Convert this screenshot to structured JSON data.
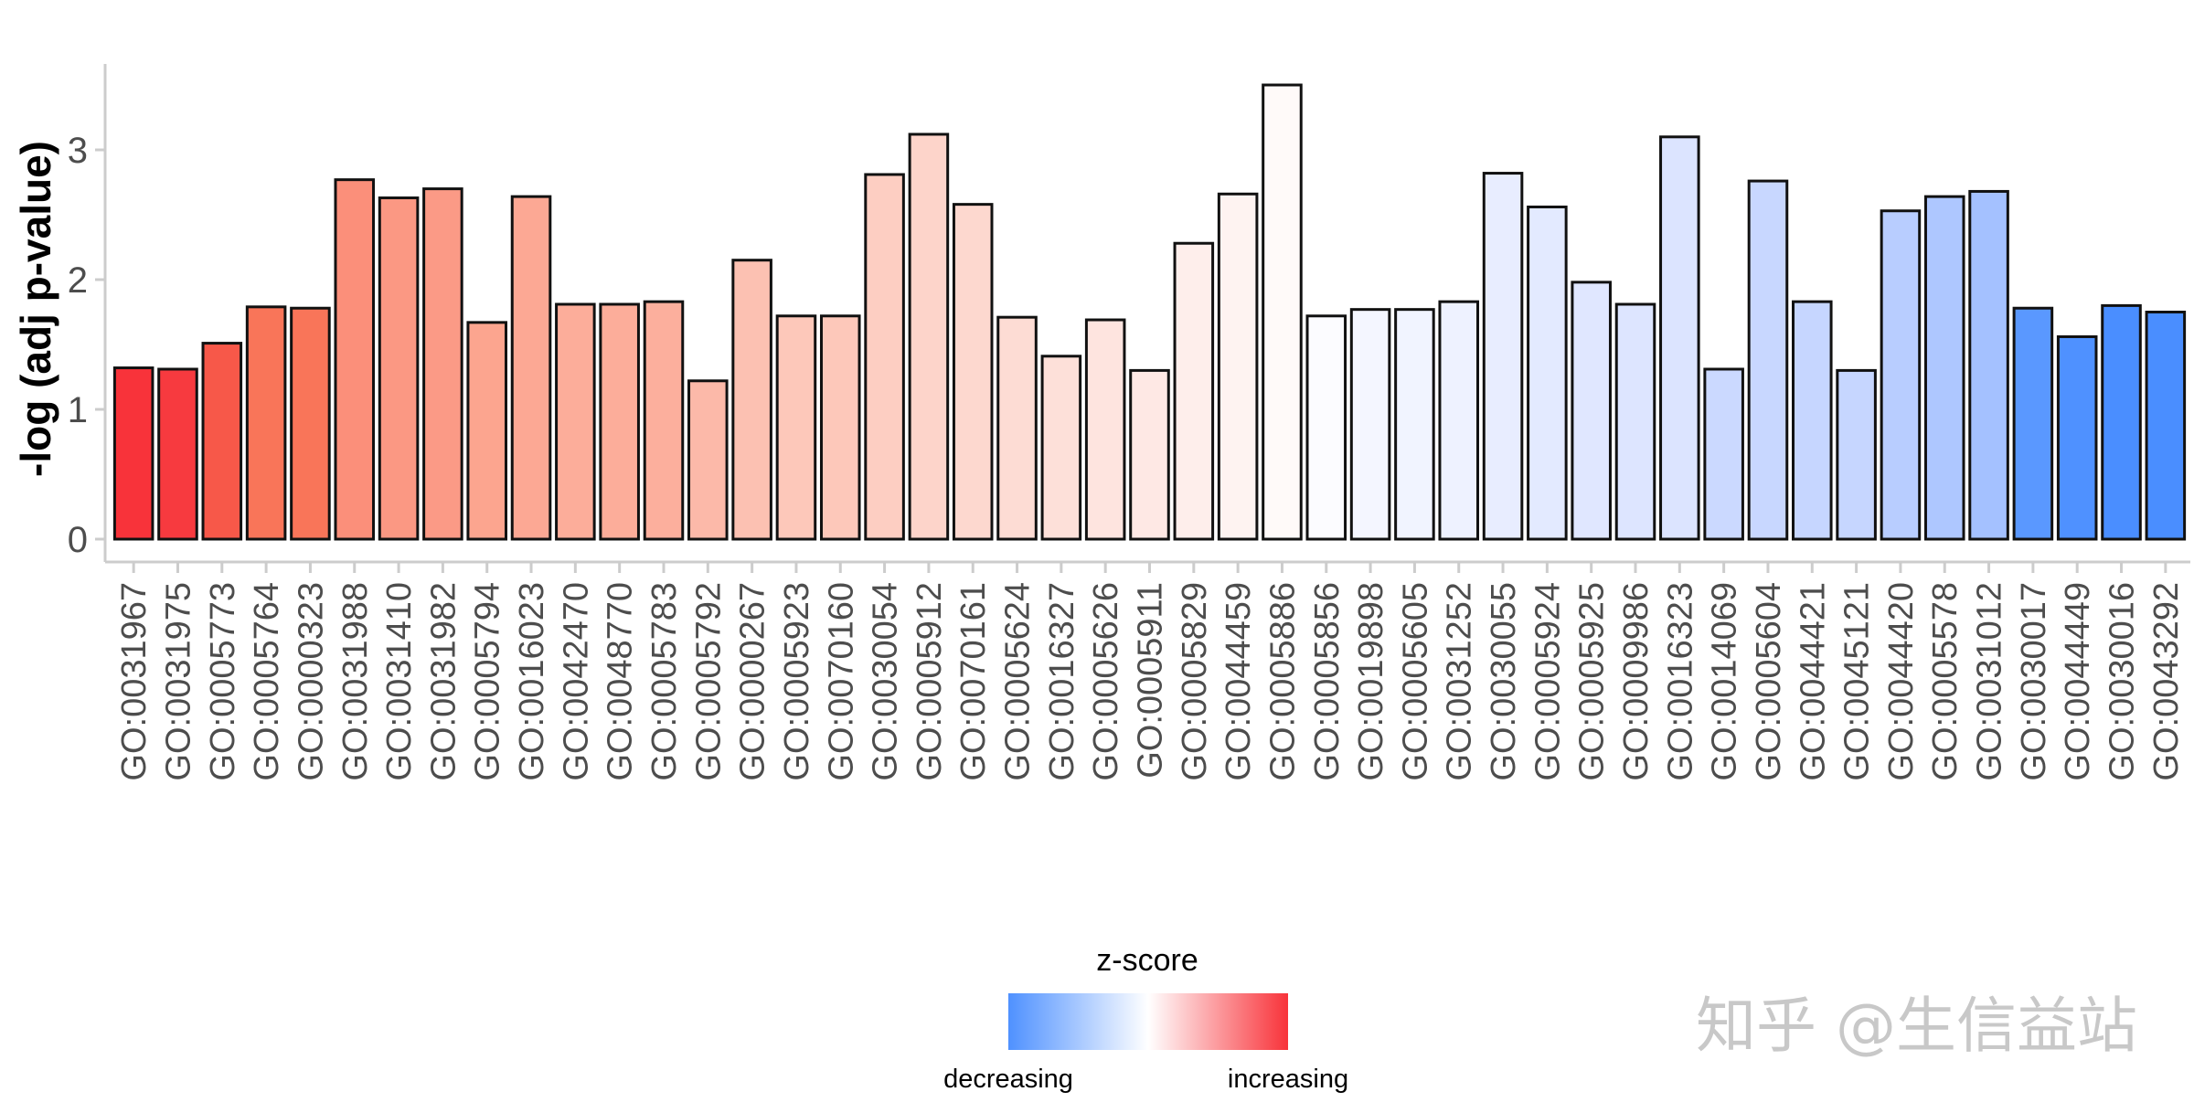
{
  "chart_data": {
    "type": "bar",
    "title": "",
    "xlabel": "",
    "ylabel": "-log (adj p-value)",
    "ylim": [
      0,
      3.6
    ],
    "yticks": [
      "0",
      "1",
      "2",
      "3"
    ],
    "categories": [
      "GO:0031967",
      "GO:0031975",
      "GO:0005773",
      "GO:0005764",
      "GO:0000323",
      "GO:0031988",
      "GO:0031410",
      "GO:0031982",
      "GO:0005794",
      "GO:0016023",
      "GO:0042470",
      "GO:0048770",
      "GO:0005783",
      "GO:0005792",
      "GO:0000267",
      "GO:0005923",
      "GO:0070160",
      "GO:0030054",
      "GO:0005912",
      "GO:0070161",
      "GO:0005624",
      "GO:0016327",
      "GO:0005626",
      "GO:0005911",
      "GO:0005829",
      "GO:0044459",
      "GO:0005886",
      "GO:0005856",
      "GO:0019898",
      "GO:0005605",
      "GO:0031252",
      "GO:0030055",
      "GO:0005924",
      "GO:0005925",
      "GO:0009986",
      "GO:0016323",
      "GO:0014069",
      "GO:0005604",
      "GO:0044421",
      "GO:0045121",
      "GO:0044420",
      "GO:0005578",
      "GO:0031012",
      "GO:0030017",
      "GO:0044449",
      "GO:0030016",
      "GO:0043292"
    ],
    "values": [
      1.32,
      1.31,
      1.51,
      1.79,
      1.78,
      2.77,
      2.63,
      2.7,
      1.67,
      2.64,
      1.81,
      1.81,
      1.83,
      1.22,
      2.15,
      1.72,
      1.72,
      2.81,
      3.12,
      2.58,
      1.71,
      1.41,
      1.69,
      1.3,
      2.28,
      2.66,
      3.5,
      1.72,
      1.77,
      1.77,
      1.83,
      2.82,
      2.56,
      1.98,
      1.81,
      3.1,
      1.31,
      2.76,
      1.83,
      1.3,
      2.53,
      2.64,
      2.68,
      1.78,
      1.56,
      1.8,
      1.75
    ],
    "colors": [
      "#f8333a",
      "#f73a3f",
      "#f75849",
      "#f97559",
      "#f97559",
      "#fb8f7a",
      "#fb9883",
      "#fb9a86",
      "#fca58f",
      "#fca894",
      "#fcad9a",
      "#fcad9a",
      "#fcaf9d",
      "#fcb9a9",
      "#fcc1b2",
      "#fdc8ba",
      "#fdc8ba",
      "#fdcec2",
      "#fdd4ca",
      "#fdd8cf",
      "#fddcd4",
      "#fde0d9",
      "#fee4df",
      "#fee8e4",
      "#feeeeb",
      "#fef3f1",
      "#fffaf9",
      "#fcfcff",
      "#f4f6ff",
      "#f1f4ff",
      "#eef2ff",
      "#e8edff",
      "#e3eaff",
      "#e0e7ff",
      "#dde5ff",
      "#dce4ff",
      "#cbd9ff",
      "#c8d7ff",
      "#c6d6ff",
      "#c6d6ff",
      "#b8cdff",
      "#aec7ff",
      "#a4c1ff",
      "#5a98ff",
      "#4f91ff",
      "#4a8eff",
      "#4a8eff"
    ],
    "legend": {
      "title": "z-score",
      "low_label": "decreasing",
      "high_label": "increasing",
      "low_color": "#4f91ff",
      "mid_color": "#ffffff",
      "high_color": "#f8333a"
    }
  },
  "watermark": "知乎 @生信益站"
}
